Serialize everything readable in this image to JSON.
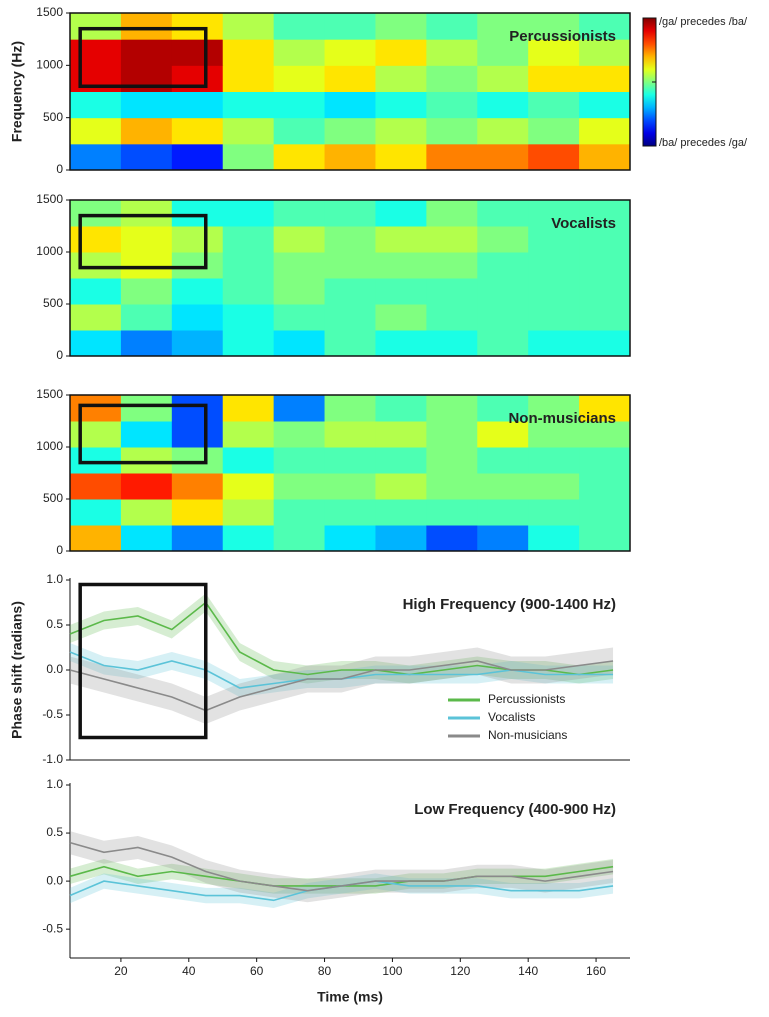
{
  "chart_data": [
    {
      "type": "heatmap",
      "title": "Percussionists",
      "ylabel": "Frequency (Hz)",
      "x_bins": [
        5,
        20,
        35,
        50,
        65,
        80,
        95,
        110,
        125,
        140,
        155,
        170
      ],
      "y_bins": [
        0,
        250,
        500,
        750,
        1000,
        1250,
        1500
      ],
      "values": [
        [
          -0.5,
          -0.6,
          -0.7,
          0,
          0.3,
          0.4,
          0.3,
          0.5,
          0.5,
          0.6,
          0.4
        ],
        [
          0.2,
          0.4,
          0.3,
          0.1,
          -0.1,
          0,
          0.1,
          0,
          0.1,
          0,
          0.2
        ],
        [
          -0.2,
          -0.3,
          -0.3,
          -0.2,
          -0.2,
          -0.3,
          -0.2,
          -0.1,
          -0.2,
          -0.1,
          -0.2
        ],
        [
          0.8,
          0.9,
          0.8,
          0.3,
          0.2,
          0.3,
          0.1,
          0,
          0.1,
          0.3,
          0.3
        ],
        [
          0.8,
          0.9,
          0.9,
          0.3,
          0.1,
          0.2,
          0.3,
          0.1,
          0,
          0.2,
          0.1
        ],
        [
          0.1,
          0.4,
          0.3,
          0.1,
          -0.1,
          -0.1,
          0,
          -0.1,
          0,
          0,
          -0.1
        ]
      ],
      "xlim": [
        5,
        170
      ],
      "ylim": [
        0,
        1500
      ],
      "yticks": [
        0,
        500,
        1000,
        1500
      ],
      "zlim": [
        -1,
        1
      ],
      "colorbar_labels": [
        "/ga/ precedes /ba/",
        "/ba/ precedes /ga/"
      ],
      "highlight": {
        "x": [
          8,
          45
        ],
        "y": [
          800,
          1350
        ]
      }
    },
    {
      "type": "heatmap",
      "title": "Vocalists",
      "x_bins": [
        5,
        20,
        35,
        50,
        65,
        80,
        95,
        110,
        125,
        140,
        155,
        170
      ],
      "y_bins": [
        0,
        250,
        500,
        750,
        1000,
        1250,
        1500
      ],
      "values": [
        [
          -0.3,
          -0.5,
          -0.4,
          -0.2,
          -0.3,
          -0.1,
          -0.2,
          -0.2,
          -0.1,
          -0.2,
          -0.2
        ],
        [
          0.1,
          -0.1,
          -0.3,
          -0.2,
          -0.1,
          -0.1,
          0,
          -0.1,
          -0.1,
          -0.1,
          -0.1
        ],
        [
          -0.2,
          0,
          -0.2,
          -0.1,
          0,
          -0.1,
          -0.1,
          -0.1,
          -0.1,
          -0.1,
          -0.1
        ],
        [
          0.1,
          0.2,
          0,
          -0.1,
          0,
          0,
          0,
          0,
          -0.1,
          -0.1,
          -0.1
        ],
        [
          0.3,
          0.2,
          0.1,
          -0.1,
          0.1,
          0,
          0.1,
          0.1,
          0,
          -0.1,
          -0.1
        ],
        [
          0,
          0.1,
          -0.2,
          -0.2,
          -0.1,
          -0.1,
          -0.2,
          0,
          -0.1,
          -0.1,
          -0.1
        ]
      ],
      "xlim": [
        5,
        170
      ],
      "ylim": [
        0,
        1500
      ],
      "yticks": [
        0,
        500,
        1000,
        1500
      ],
      "zlim": [
        -1,
        1
      ],
      "highlight": {
        "x": [
          8,
          45
        ],
        "y": [
          850,
          1350
        ]
      }
    },
    {
      "type": "heatmap",
      "title": "Non-musicians",
      "x_bins": [
        5,
        20,
        35,
        50,
        65,
        80,
        95,
        110,
        125,
        140,
        155,
        170
      ],
      "y_bins": [
        0,
        250,
        500,
        750,
        1000,
        1250,
        1500
      ],
      "values": [
        [
          0.4,
          -0.3,
          -0.5,
          -0.2,
          -0.1,
          -0.3,
          -0.4,
          -0.6,
          -0.5,
          -0.2,
          -0.1
        ],
        [
          -0.2,
          0.1,
          0.3,
          0.1,
          -0.1,
          -0.1,
          -0.1,
          -0.1,
          -0.1,
          -0.1,
          -0.1
        ],
        [
          0.6,
          0.7,
          0.5,
          0.2,
          0,
          0,
          0.1,
          0,
          0,
          0,
          -0.1
        ],
        [
          -0.2,
          0.1,
          0,
          -0.2,
          -0.1,
          -0.1,
          -0.1,
          0,
          -0.1,
          -0.1,
          -0.1
        ],
        [
          0.1,
          -0.3,
          -0.6,
          0.1,
          0,
          0.1,
          0.1,
          0,
          0.2,
          0,
          0
        ],
        [
          0.5,
          0,
          -0.6,
          0.3,
          -0.5,
          0,
          -0.1,
          0,
          -0.1,
          0,
          0.3
        ]
      ],
      "xlim": [
        5,
        170
      ],
      "ylim": [
        0,
        1500
      ],
      "yticks": [
        0,
        500,
        1000,
        1500
      ],
      "zlim": [
        -1,
        1
      ],
      "highlight": {
        "x": [
          8,
          45
        ],
        "y": [
          850,
          1400
        ]
      }
    },
    {
      "type": "line",
      "title": "High Frequency (900-1400 Hz)",
      "ylabel": "Phase shift (radians)",
      "x": [
        5,
        15,
        25,
        35,
        45,
        55,
        65,
        75,
        85,
        95,
        105,
        115,
        125,
        135,
        145,
        155,
        165
      ],
      "series": [
        {
          "name": "Percussionists",
          "color": "#5bb94a",
          "error": 0.1,
          "values": [
            0.4,
            0.55,
            0.6,
            0.45,
            0.75,
            0.2,
            0,
            -0.05,
            0,
            0,
            -0.05,
            0,
            0.05,
            0,
            0,
            -0.05,
            0
          ]
        },
        {
          "name": "Vocalists",
          "color": "#5bc3d8",
          "error": 0.1,
          "values": [
            0.2,
            0.05,
            0,
            0.1,
            0,
            -0.2,
            -0.15,
            -0.1,
            -0.1,
            -0.05,
            -0.05,
            -0.05,
            -0.05,
            0,
            -0.05,
            -0.05,
            -0.05
          ]
        },
        {
          "name": "Non-musicians",
          "color": "#8a8a8a",
          "error": 0.15,
          "values": [
            0,
            -0.1,
            -0.2,
            -0.3,
            -0.45,
            -0.3,
            -0.2,
            -0.1,
            -0.1,
            0,
            0,
            0.05,
            0.1,
            0,
            0,
            0.05,
            0.1
          ]
        }
      ],
      "xlim": [
        5,
        170
      ],
      "ylim": [
        -1,
        1
      ],
      "yticks": [
        {
          "value": 1,
          "label": "1.0"
        },
        {
          "value": 0.5,
          "label": "0.5"
        },
        {
          "value": 0,
          "label": "0.0"
        },
        {
          "value": -0.5,
          "label": "-0.5"
        },
        {
          "value": -1,
          "label": "-1.0"
        }
      ],
      "legend": "lower right",
      "highlight": {
        "x": [
          8,
          45
        ],
        "y": [
          -0.75,
          0.95
        ]
      }
    },
    {
      "type": "line",
      "title": "Low Frequency (400-900 Hz)",
      "xlabel": "Time (ms)",
      "x": [
        5,
        15,
        25,
        35,
        45,
        55,
        65,
        75,
        85,
        95,
        105,
        115,
        125,
        135,
        145,
        155,
        165
      ],
      "series": [
        {
          "name": "Percussionists",
          "color": "#5bb94a",
          "error": 0.08,
          "values": [
            0.05,
            0.15,
            0.05,
            0.1,
            0.05,
            0,
            -0.05,
            -0.05,
            -0.05,
            -0.05,
            0,
            0,
            0.05,
            0.05,
            0.05,
            0.1,
            0.15
          ]
        },
        {
          "name": "Vocalists",
          "color": "#5bc3d8",
          "error": 0.08,
          "values": [
            -0.15,
            0,
            -0.05,
            -0.1,
            -0.15,
            -0.15,
            -0.2,
            -0.1,
            -0.05,
            0,
            -0.05,
            -0.05,
            -0.05,
            -0.1,
            -0.1,
            -0.1,
            -0.05
          ]
        },
        {
          "name": "Non-musicians",
          "color": "#8a8a8a",
          "error": 0.12,
          "values": [
            0.4,
            0.3,
            0.35,
            0.25,
            0.1,
            0,
            -0.05,
            -0.1,
            -0.05,
            0,
            0,
            0,
            0.05,
            0.05,
            0,
            0.05,
            0.1
          ]
        }
      ],
      "xlim": [
        5,
        170
      ],
      "ylim": [
        -0.8,
        1
      ],
      "yticks": [
        {
          "value": 1,
          "label": "1.0"
        },
        {
          "value": 0.5,
          "label": "0.5"
        },
        {
          "value": 0,
          "label": "0.0"
        },
        {
          "value": -0.5,
          "label": "-0.5"
        }
      ],
      "xticks": [
        20,
        40,
        60,
        80,
        100,
        120,
        140,
        160
      ]
    }
  ]
}
